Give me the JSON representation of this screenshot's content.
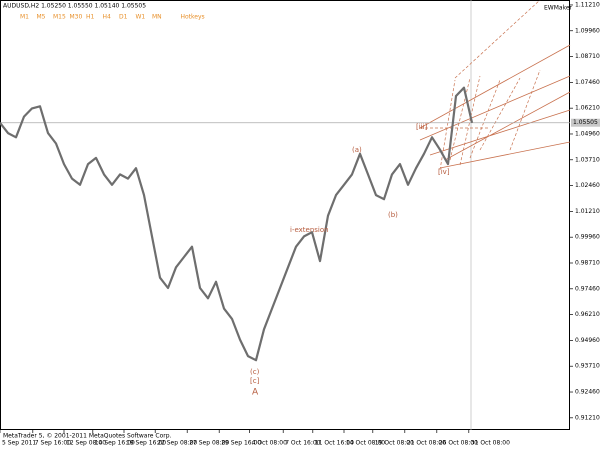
{
  "chart_data": {
    "type": "line",
    "title": "AUDUSD,H2  1.05250 1.05550 1.05140 1.05505",
    "timeframes": [
      "M1",
      "M5",
      "M15",
      "M30",
      "H1",
      "H4",
      "D1",
      "W1",
      "MN",
      "Hotkeys"
    ],
    "brand": "EWMaker",
    "footer": "MetaTrader 5, © 2001-2011 MetaQuotes Software Corp.",
    "color": "#6e6e6e",
    "values": [
      1.055,
      1.05,
      1.048,
      1.058,
      1.062,
      1.063,
      1.05,
      1.045,
      1.035,
      1.028,
      1.025,
      1.035,
      1.038,
      1.03,
      1.025,
      1.03,
      1.028,
      1.033,
      1.02,
      1.0,
      0.98,
      0.975,
      0.985,
      0.99,
      0.995,
      0.975,
      0.97,
      0.978,
      0.965,
      0.96,
      0.95,
      0.942,
      0.94,
      0.955,
      0.965,
      0.975,
      0.985,
      0.995,
      1.0,
      1.002,
      0.988,
      1.01,
      1.02,
      1.025,
      1.03,
      1.04,
      1.03,
      1.02,
      1.018,
      1.03,
      1.035,
      1.025,
      1.033,
      1.04,
      1.048,
      1.042,
      1.035,
      1.068,
      1.072,
      1.055
    ],
    "current_price": {
      "value": 1.05505,
      "label": "1.05505"
    },
    "xlim": [
      0,
      71.25
    ],
    "xticks": [
      {
        "value": 0,
        "label": "5 Sep 2011"
      },
      {
        "value": 4.1,
        "label": "7 Sep 16:00"
      },
      {
        "value": 8,
        "label": "12 Sep 08:00"
      },
      {
        "value": 11.6,
        "label": "14 Sep 16:00"
      },
      {
        "value": 15.5,
        "label": "19 Sep 16:00"
      },
      {
        "value": 19.4,
        "label": "22 Sep 08:00"
      },
      {
        "value": 23.4,
        "label": "27 Sep 08:00"
      },
      {
        "value": 27.4,
        "label": "29 Sep 16:00"
      },
      {
        "value": 31.2,
        "label": "4 Oct 08:00"
      },
      {
        "value": 35.4,
        "label": "7 Oct 16:00"
      },
      {
        "value": 39.1,
        "label": "11 Oct 16:00"
      },
      {
        "value": 43,
        "label": "14 Oct 08:00"
      },
      {
        "value": 46.6,
        "label": "19 Oct 08:00"
      },
      {
        "value": 50.6,
        "label": "21 Oct 08:00"
      },
      {
        "value": 54.6,
        "label": "26 Oct 08:00"
      },
      {
        "value": 58.6,
        "label": "31 Oct 08:00"
      }
    ],
    "ylim": [
      0.9062,
      1.1145
    ],
    "yticks": [
      {
        "value": 0.9121,
        "label": "0.91210"
      },
      {
        "value": 0.9246,
        "label": "0.92460"
      },
      {
        "value": 0.9371,
        "label": "0.93710"
      },
      {
        "value": 0.9496,
        "label": "0.94960"
      },
      {
        "value": 0.9621,
        "label": "0.96210"
      },
      {
        "value": 0.9746,
        "label": "0.97460"
      },
      {
        "value": 0.9871,
        "label": "0.98710"
      },
      {
        "value": 0.9996,
        "label": "0.99960"
      },
      {
        "value": 1.0121,
        "label": "1.01210"
      },
      {
        "value": 1.0246,
        "label": "1.02460"
      },
      {
        "value": 1.0371,
        "label": "1.03710"
      },
      {
        "value": 1.0496,
        "label": "1.04960"
      },
      {
        "value": 1.0621,
        "label": "1.06210"
      },
      {
        "value": 1.0746,
        "label": "1.07460"
      },
      {
        "value": 1.0871,
        "label": "1.08710"
      },
      {
        "value": 1.0996,
        "label": "1.09960"
      },
      {
        "value": 1.1121,
        "label": "1.11210"
      }
    ],
    "annotations": [
      "A",
      "i-extension",
      "(c)",
      "[c]",
      "(a)",
      "(b)",
      "[iii]",
      "[iv]"
    ]
  }
}
